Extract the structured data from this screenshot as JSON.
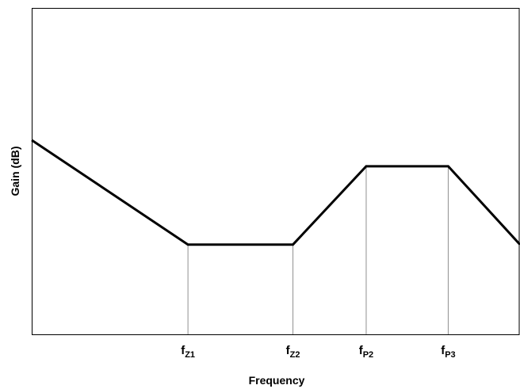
{
  "chart_data": {
    "type": "line",
    "title": "",
    "xlabel": "Frequency",
    "ylabel": "Gain (dB)",
    "xlim": [
      0,
      100
    ],
    "ylim": [
      0,
      100
    ],
    "grid": false,
    "tick_labels": [
      {
        "main": "f",
        "sub": "Z1",
        "x": 32
      },
      {
        "main": "f",
        "sub": "Z2",
        "x": 53.5
      },
      {
        "main": "f",
        "sub": "P2",
        "x": 68.5
      },
      {
        "main": "f",
        "sub": "P3",
        "x": 85.3
      }
    ],
    "series": [
      {
        "x": [
          0,
          32,
          53.5,
          68.5,
          85.3,
          100
        ],
        "y": [
          59.5,
          27.5,
          27.5,
          51.5,
          51.5,
          27.5
        ]
      }
    ],
    "colors": {
      "line": "#000000",
      "marker_lines": "#909090",
      "axis": "#000000"
    }
  }
}
